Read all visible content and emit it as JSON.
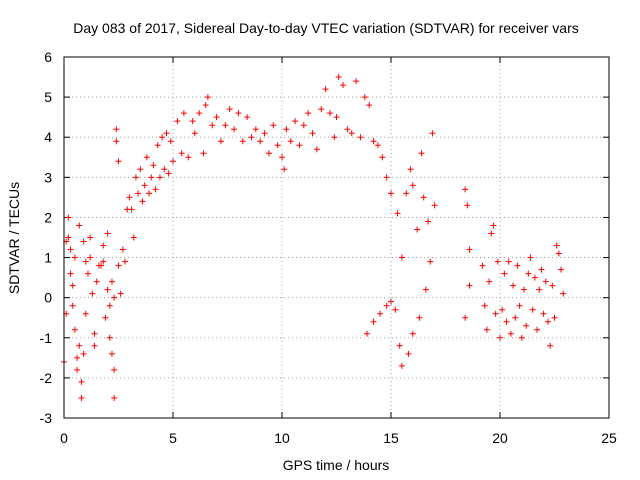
{
  "chart_data": {
    "type": "scatter",
    "title": "Day 083 of 2017, Sidereal Day-to-day VTEC variation (SDTVAR) for receiver vars",
    "xlabel": "GPS time / hours",
    "ylabel": "SDTVAR / TECUs",
    "xlim": [
      0,
      25
    ],
    "ylim": [
      -3,
      6
    ],
    "xticks": [
      0,
      5,
      10,
      15,
      20,
      25
    ],
    "yticks": [
      -3,
      -2,
      -1,
      0,
      1,
      2,
      3,
      4,
      5,
      6
    ],
    "xtick_labels": [
      "0",
      "5",
      "10",
      "15",
      "20",
      "25"
    ],
    "ytick_labels": [
      "-3",
      "-2",
      "-1",
      "0",
      "1",
      "2",
      "3",
      "4",
      "5",
      "6"
    ],
    "grid": true,
    "marker": "+",
    "color": "#ff0000",
    "series": [
      {
        "name": "SDTVAR",
        "points": [
          [
            0.0,
            -1.6
          ],
          [
            0.1,
            -0.4
          ],
          [
            0.1,
            1.4
          ],
          [
            0.2,
            2.0
          ],
          [
            0.2,
            1.5
          ],
          [
            0.3,
            0.6
          ],
          [
            0.3,
            1.2
          ],
          [
            0.4,
            -0.2
          ],
          [
            0.4,
            0.3
          ],
          [
            0.5,
            -0.8
          ],
          [
            0.5,
            1.0
          ],
          [
            0.6,
            -1.5
          ],
          [
            0.6,
            -1.8
          ],
          [
            0.7,
            -1.2
          ],
          [
            0.7,
            1.8
          ],
          [
            0.8,
            -2.1
          ],
          [
            0.8,
            -2.5
          ],
          [
            0.9,
            -1.4
          ],
          [
            0.9,
            1.4
          ],
          [
            1.0,
            0.9
          ],
          [
            1.0,
            -0.4
          ],
          [
            1.1,
            0.6
          ],
          [
            1.2,
            1.5
          ],
          [
            1.2,
            1.0
          ],
          [
            1.3,
            0.1
          ],
          [
            1.4,
            -0.9
          ],
          [
            1.4,
            -1.2
          ],
          [
            1.5,
            0.4
          ],
          [
            1.6,
            0.8
          ],
          [
            1.7,
            0.8
          ],
          [
            1.8,
            1.3
          ],
          [
            1.8,
            0.9
          ],
          [
            1.9,
            -0.5
          ],
          [
            2.0,
            1.6
          ],
          [
            2.0,
            0.2
          ],
          [
            2.1,
            -1.0
          ],
          [
            2.1,
            -0.2
          ],
          [
            2.2,
            0.4
          ],
          [
            2.2,
            -1.4
          ],
          [
            2.3,
            0.0
          ],
          [
            2.3,
            -2.5
          ],
          [
            2.3,
            -1.8
          ],
          [
            2.4,
            4.2
          ],
          [
            2.4,
            3.9
          ],
          [
            2.5,
            3.4
          ],
          [
            2.5,
            0.8
          ],
          [
            2.6,
            0.1
          ],
          [
            2.7,
            1.2
          ],
          [
            2.8,
            0.9
          ],
          [
            2.9,
            2.2
          ],
          [
            3.0,
            2.5
          ],
          [
            3.1,
            2.2
          ],
          [
            3.2,
            1.5
          ],
          [
            3.3,
            3.0
          ],
          [
            3.4,
            2.6
          ],
          [
            3.5,
            3.2
          ],
          [
            3.6,
            2.4
          ],
          [
            3.7,
            2.8
          ],
          [
            3.8,
            3.5
          ],
          [
            3.9,
            2.6
          ],
          [
            4.0,
            3.0
          ],
          [
            4.1,
            3.3
          ],
          [
            4.2,
            2.7
          ],
          [
            4.3,
            3.8
          ],
          [
            4.4,
            3.0
          ],
          [
            4.5,
            4.0
          ],
          [
            4.6,
            3.2
          ],
          [
            4.7,
            4.1
          ],
          [
            4.8,
            3.1
          ],
          [
            4.9,
            3.9
          ],
          [
            5.0,
            3.4
          ],
          [
            5.2,
            4.4
          ],
          [
            5.4,
            3.6
          ],
          [
            5.5,
            4.6
          ],
          [
            5.7,
            3.5
          ],
          [
            5.9,
            4.4
          ],
          [
            6.0,
            4.1
          ],
          [
            6.2,
            4.6
          ],
          [
            6.4,
            3.6
          ],
          [
            6.5,
            4.8
          ],
          [
            6.6,
            5.0
          ],
          [
            6.8,
            4.3
          ],
          [
            7.0,
            4.5
          ],
          [
            7.2,
            3.9
          ],
          [
            7.4,
            4.3
          ],
          [
            7.6,
            4.7
          ],
          [
            7.8,
            4.2
          ],
          [
            8.0,
            4.6
          ],
          [
            8.2,
            3.9
          ],
          [
            8.4,
            4.5
          ],
          [
            8.6,
            4.0
          ],
          [
            8.8,
            4.2
          ],
          [
            9.0,
            3.9
          ],
          [
            9.2,
            4.1
          ],
          [
            9.4,
            3.6
          ],
          [
            9.6,
            4.3
          ],
          [
            9.8,
            3.8
          ],
          [
            10.0,
            3.5
          ],
          [
            10.1,
            3.2
          ],
          [
            10.2,
            4.2
          ],
          [
            10.4,
            3.9
          ],
          [
            10.6,
            4.4
          ],
          [
            10.8,
            3.8
          ],
          [
            11.0,
            4.3
          ],
          [
            11.2,
            4.6
          ],
          [
            11.4,
            4.1
          ],
          [
            11.6,
            3.7
          ],
          [
            11.8,
            4.7
          ],
          [
            12.0,
            5.2
          ],
          [
            12.2,
            4.6
          ],
          [
            12.4,
            4.0
          ],
          [
            12.5,
            4.5
          ],
          [
            12.6,
            5.5
          ],
          [
            12.8,
            5.3
          ],
          [
            13.0,
            4.2
          ],
          [
            13.2,
            4.1
          ],
          [
            13.4,
            5.4
          ],
          [
            13.6,
            4.0
          ],
          [
            13.8,
            5.0
          ],
          [
            13.9,
            -0.9
          ],
          [
            14.0,
            4.8
          ],
          [
            14.2,
            3.9
          ],
          [
            14.2,
            -0.6
          ],
          [
            14.4,
            3.8
          ],
          [
            14.5,
            -0.4
          ],
          [
            14.6,
            3.5
          ],
          [
            14.8,
            3.0
          ],
          [
            14.8,
            -0.2
          ],
          [
            15.0,
            2.6
          ],
          [
            15.0,
            -0.1
          ],
          [
            15.2,
            -0.3
          ],
          [
            15.3,
            2.1
          ],
          [
            15.4,
            -1.2
          ],
          [
            15.5,
            -1.7
          ],
          [
            15.5,
            1.0
          ],
          [
            15.7,
            2.6
          ],
          [
            15.8,
            -1.4
          ],
          [
            15.9,
            3.2
          ],
          [
            16.0,
            -0.9
          ],
          [
            16.0,
            2.8
          ],
          [
            16.2,
            1.7
          ],
          [
            16.3,
            -0.5
          ],
          [
            16.4,
            3.6
          ],
          [
            16.5,
            2.5
          ],
          [
            16.6,
            0.2
          ],
          [
            16.7,
            1.9
          ],
          [
            16.8,
            0.9
          ],
          [
            16.9,
            4.1
          ],
          [
            17.0,
            2.3
          ],
          [
            18.4,
            2.7
          ],
          [
            18.4,
            -0.5
          ],
          [
            18.5,
            2.3
          ],
          [
            18.6,
            0.3
          ],
          [
            18.6,
            1.2
          ],
          [
            19.2,
            0.8
          ],
          [
            19.3,
            -0.2
          ],
          [
            19.4,
            -0.8
          ],
          [
            19.5,
            0.4
          ],
          [
            19.6,
            1.6
          ],
          [
            19.7,
            1.8
          ],
          [
            19.8,
            -0.4
          ],
          [
            19.9,
            0.9
          ],
          [
            20.0,
            -1.0
          ],
          [
            20.1,
            -0.3
          ],
          [
            20.2,
            0.6
          ],
          [
            20.3,
            -0.6
          ],
          [
            20.4,
            0.9
          ],
          [
            20.5,
            -0.9
          ],
          [
            20.6,
            0.3
          ],
          [
            20.7,
            -0.5
          ],
          [
            20.8,
            0.8
          ],
          [
            20.9,
            -0.2
          ],
          [
            21.0,
            -1.0
          ],
          [
            21.1,
            0.2
          ],
          [
            21.2,
            -0.7
          ],
          [
            21.3,
            0.6
          ],
          [
            21.4,
            1.0
          ],
          [
            21.5,
            -0.3
          ],
          [
            21.6,
            0.5
          ],
          [
            21.7,
            -0.8
          ],
          [
            21.8,
            0.2
          ],
          [
            21.9,
            0.7
          ],
          [
            22.0,
            -0.4
          ],
          [
            22.1,
            0.4
          ],
          [
            22.2,
            -0.6
          ],
          [
            22.3,
            -1.2
          ],
          [
            22.4,
            0.3
          ],
          [
            22.5,
            -0.5
          ],
          [
            22.6,
            1.3
          ],
          [
            22.7,
            1.1
          ],
          [
            22.8,
            0.7
          ],
          [
            22.9,
            0.1
          ]
        ]
      }
    ]
  }
}
